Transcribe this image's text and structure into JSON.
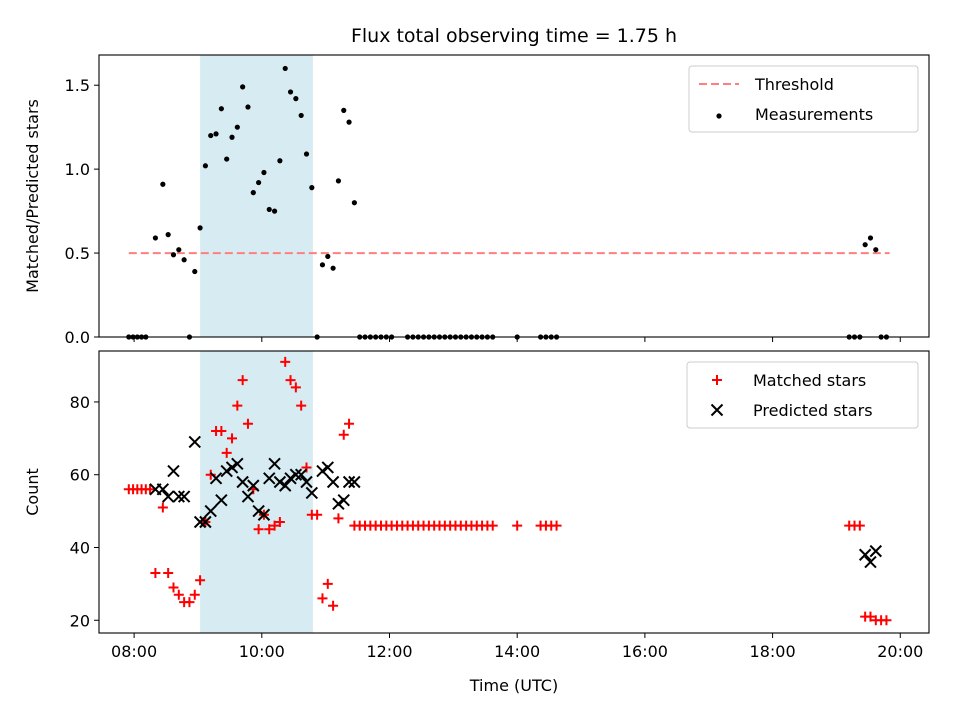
{
  "figure": {
    "title": "Flux total observing time = 1.75 h",
    "xlabel": "Time (UTC)",
    "x_ticks": [
      "08:00",
      "10:00",
      "12:00",
      "14:00",
      "16:00",
      "18:00",
      "20:00"
    ]
  },
  "colors": {
    "threshold": "#ff7f7f",
    "measurement": "#000000",
    "matched": "#ff0000",
    "predicted": "#000000",
    "span": "#add8e6"
  },
  "chart_data": [
    {
      "type": "scatter",
      "ylabel": "Matched/Predicted stars",
      "xlim": [
        "07:27",
        "20:27"
      ],
      "ylim": [
        0,
        1.68
      ],
      "y_ticks": [
        "0.0",
        "0.5",
        "1.0",
        "1.5"
      ],
      "y_tick_values": [
        0,
        0.5,
        1.0,
        1.5
      ],
      "highlight_span": [
        "09:02",
        "10:48"
      ],
      "legend": {
        "placement": "top-right",
        "entries": [
          "Threshold",
          "Measurements"
        ]
      },
      "threshold": {
        "name": "Threshold",
        "value": 0.5,
        "x_range": [
          "07:55",
          "19:50"
        ]
      },
      "series": [
        {
          "name": "Measurements",
          "points": [
            [
              "07:55",
              0
            ],
            [
              "07:59",
              0
            ],
            [
              "08:03",
              0
            ],
            [
              "08:07",
              0
            ],
            [
              "08:11",
              0
            ],
            [
              "08:20",
              0.59
            ],
            [
              "08:27",
              0.91
            ],
            [
              "08:32",
              0.61
            ],
            [
              "08:37",
              0.49
            ],
            [
              "08:42",
              0.52
            ],
            [
              "08:47",
              0.46
            ],
            [
              "08:52",
              0
            ],
            [
              "08:57",
              0.39
            ],
            [
              "09:02",
              0.65
            ],
            [
              "09:07",
              1.02
            ],
            [
              "09:12",
              1.2
            ],
            [
              "09:17",
              1.21
            ],
            [
              "09:22",
              1.36
            ],
            [
              "09:27",
              1.06
            ],
            [
              "09:32",
              1.19
            ],
            [
              "09:37",
              1.25
            ],
            [
              "09:42",
              1.49
            ],
            [
              "09:47",
              1.37
            ],
            [
              "09:52",
              0.86
            ],
            [
              "09:57",
              0.92
            ],
            [
              "10:02",
              0.98
            ],
            [
              "10:07",
              0.76
            ],
            [
              "10:12",
              0.75
            ],
            [
              "10:17",
              1.05
            ],
            [
              "10:22",
              1.6
            ],
            [
              "10:27",
              1.46
            ],
            [
              "10:32",
              1.42
            ],
            [
              "10:37",
              1.32
            ],
            [
              "10:42",
              1.09
            ],
            [
              "10:47",
              0.89
            ],
            [
              "10:52",
              0
            ],
            [
              "10:57",
              0.43
            ],
            [
              "11:02",
              0.48
            ],
            [
              "11:07",
              0.41
            ],
            [
              "11:12",
              0.93
            ],
            [
              "11:17",
              1.35
            ],
            [
              "11:22",
              1.28
            ],
            [
              "11:27",
              0.8
            ],
            [
              "11:32",
              0
            ],
            [
              "11:37",
              0
            ],
            [
              "11:42",
              0
            ],
            [
              "11:47",
              0
            ],
            [
              "11:52",
              0
            ],
            [
              "11:57",
              0
            ],
            [
              "12:02",
              0
            ],
            [
              "12:17",
              0
            ],
            [
              "12:22",
              0
            ],
            [
              "12:27",
              0
            ],
            [
              "12:32",
              0
            ],
            [
              "12:37",
              0
            ],
            [
              "12:42",
              0
            ],
            [
              "12:47",
              0
            ],
            [
              "12:52",
              0
            ],
            [
              "12:57",
              0
            ],
            [
              "13:02",
              0
            ],
            [
              "13:07",
              0
            ],
            [
              "13:12",
              0
            ],
            [
              "13:17",
              0
            ],
            [
              "13:22",
              0
            ],
            [
              "13:27",
              0
            ],
            [
              "13:32",
              0
            ],
            [
              "13:37",
              0
            ],
            [
              "14:00",
              0
            ],
            [
              "14:22",
              0
            ],
            [
              "14:27",
              0
            ],
            [
              "14:32",
              0
            ],
            [
              "14:37",
              0
            ],
            [
              "19:12",
              0
            ],
            [
              "19:17",
              0
            ],
            [
              "19:22",
              0
            ],
            [
              "19:27",
              0.55
            ],
            [
              "19:32",
              0.59
            ],
            [
              "19:37",
              0.52
            ],
            [
              "19:42",
              0
            ],
            [
              "19:47",
              0
            ]
          ]
        }
      ]
    },
    {
      "type": "scatter",
      "ylabel": "Count",
      "xlim": [
        "07:27",
        "20:27"
      ],
      "ylim": [
        16.5,
        94
      ],
      "y_ticks": [
        "20",
        "40",
        "60",
        "80"
      ],
      "y_tick_values": [
        20,
        40,
        60,
        80
      ],
      "highlight_span": [
        "09:02",
        "10:48"
      ],
      "legend": {
        "placement": "top-right",
        "entries": [
          "Matched stars",
          "Predicted stars"
        ]
      },
      "series": [
        {
          "name": "Matched stars",
          "marker": "plus",
          "points": [
            [
              "07:55",
              56
            ],
            [
              "07:59",
              56
            ],
            [
              "08:03",
              56
            ],
            [
              "08:07",
              56
            ],
            [
              "08:11",
              56
            ],
            [
              "08:15",
              56
            ],
            [
              "08:20",
              33
            ],
            [
              "08:27",
              51
            ],
            [
              "08:32",
              33
            ],
            [
              "08:37",
              29
            ],
            [
              "08:42",
              27
            ],
            [
              "08:47",
              25
            ],
            [
              "08:52",
              25
            ],
            [
              "08:57",
              27
            ],
            [
              "09:02",
              31
            ],
            [
              "09:07",
              47
            ],
            [
              "09:12",
              60
            ],
            [
              "09:17",
              72
            ],
            [
              "09:22",
              72
            ],
            [
              "09:27",
              66
            ],
            [
              "09:32",
              70
            ],
            [
              "09:37",
              79
            ],
            [
              "09:42",
              86
            ],
            [
              "09:47",
              74
            ],
            [
              "09:52",
              56
            ],
            [
              "09:57",
              45
            ],
            [
              "10:02",
              49
            ],
            [
              "10:07",
              45
            ],
            [
              "10:12",
              46
            ],
            [
              "10:17",
              47
            ],
            [
              "10:22",
              91
            ],
            [
              "10:27",
              86
            ],
            [
              "10:32",
              84
            ],
            [
              "10:37",
              79
            ],
            [
              "10:42",
              62
            ],
            [
              "10:47",
              49
            ],
            [
              "10:52",
              49
            ],
            [
              "10:57",
              26
            ],
            [
              "11:02",
              30
            ],
            [
              "11:07",
              24
            ],
            [
              "11:12",
              48
            ],
            [
              "11:17",
              71
            ],
            [
              "11:22",
              74
            ],
            [
              "11:27",
              46
            ],
            [
              "11:32",
              46
            ],
            [
              "11:37",
              46
            ],
            [
              "11:42",
              46
            ],
            [
              "11:47",
              46
            ],
            [
              "11:52",
              46
            ],
            [
              "11:57",
              46
            ],
            [
              "12:02",
              46
            ],
            [
              "12:07",
              46
            ],
            [
              "12:12",
              46
            ],
            [
              "12:17",
              46
            ],
            [
              "12:22",
              46
            ],
            [
              "12:27",
              46
            ],
            [
              "12:32",
              46
            ],
            [
              "12:37",
              46
            ],
            [
              "12:42",
              46
            ],
            [
              "12:47",
              46
            ],
            [
              "12:52",
              46
            ],
            [
              "12:57",
              46
            ],
            [
              "13:02",
              46
            ],
            [
              "13:07",
              46
            ],
            [
              "13:12",
              46
            ],
            [
              "13:17",
              46
            ],
            [
              "13:22",
              46
            ],
            [
              "13:27",
              46
            ],
            [
              "13:32",
              46
            ],
            [
              "13:37",
              46
            ],
            [
              "14:00",
              46
            ],
            [
              "14:22",
              46
            ],
            [
              "14:27",
              46
            ],
            [
              "14:32",
              46
            ],
            [
              "14:37",
              46
            ],
            [
              "19:12",
              46
            ],
            [
              "19:17",
              46
            ],
            [
              "19:22",
              46
            ],
            [
              "19:27",
              21
            ],
            [
              "19:32",
              21
            ],
            [
              "19:37",
              20
            ],
            [
              "19:42",
              20
            ],
            [
              "19:47",
              20
            ]
          ]
        },
        {
          "name": "Predicted stars",
          "marker": "x",
          "points": [
            [
              "08:20",
              56
            ],
            [
              "08:27",
              56
            ],
            [
              "08:32",
              54
            ],
            [
              "08:37",
              61
            ],
            [
              "08:42",
              54
            ],
            [
              "08:47",
              54
            ],
            [
              "08:57",
              69
            ],
            [
              "09:02",
              47
            ],
            [
              "09:07",
              47
            ],
            [
              "09:12",
              50
            ],
            [
              "09:17",
              59
            ],
            [
              "09:22",
              53
            ],
            [
              "09:27",
              61
            ],
            [
              "09:32",
              62
            ],
            [
              "09:37",
              63
            ],
            [
              "09:42",
              58
            ],
            [
              "09:47",
              54
            ],
            [
              "09:52",
              57
            ],
            [
              "09:57",
              50
            ],
            [
              "10:02",
              49
            ],
            [
              "10:07",
              59
            ],
            [
              "10:12",
              63
            ],
            [
              "10:17",
              58
            ],
            [
              "10:22",
              57
            ],
            [
              "10:27",
              59
            ],
            [
              "10:32",
              60
            ],
            [
              "10:37",
              60
            ],
            [
              "10:42",
              58
            ],
            [
              "10:47",
              55
            ],
            [
              "10:57",
              61
            ],
            [
              "11:02",
              62
            ],
            [
              "11:07",
              58
            ],
            [
              "11:12",
              52
            ],
            [
              "11:17",
              53
            ],
            [
              "11:22",
              58
            ],
            [
              "11:27",
              58
            ],
            [
              "19:27",
              38
            ],
            [
              "19:32",
              36
            ],
            [
              "19:37",
              39
            ]
          ]
        }
      ]
    }
  ]
}
